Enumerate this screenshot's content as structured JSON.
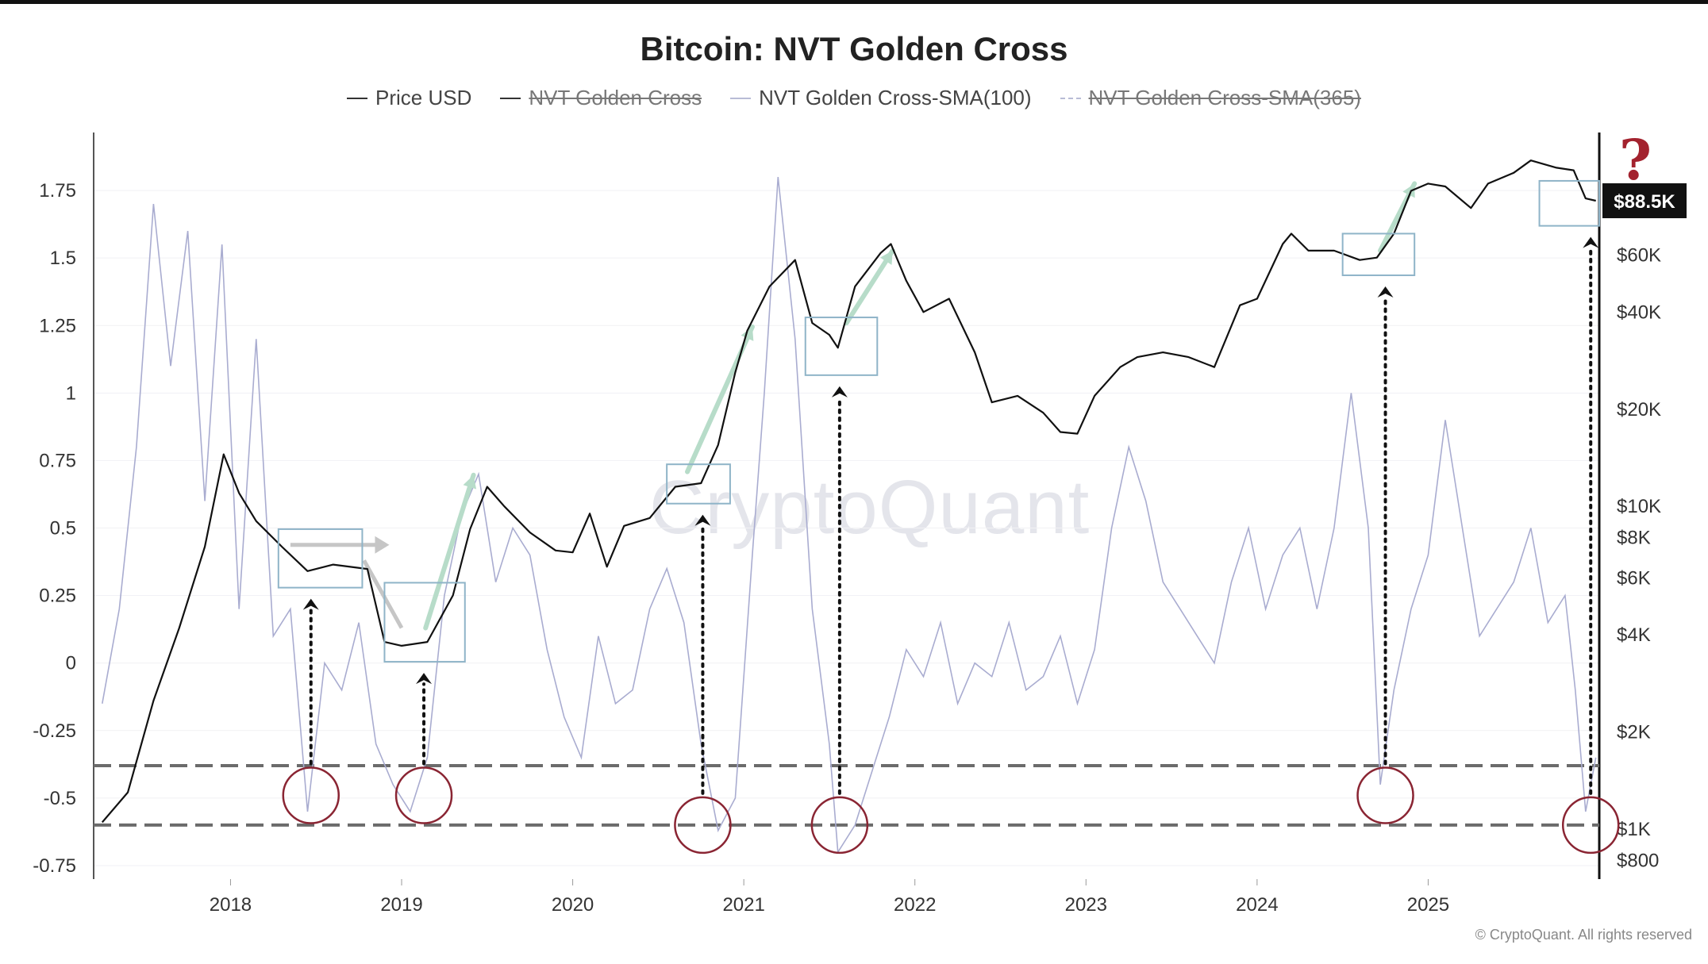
{
  "chart_data": {
    "type": "line",
    "title": "Bitcoin: NVT Golden Cross",
    "legend": [
      {
        "name": "Price USD",
        "struck": false,
        "style": "solid-dark"
      },
      {
        "name": "NVT Golden Cross",
        "struck": true,
        "style": "solid-dark"
      },
      {
        "name": "NVT Golden Cross-SMA(100)",
        "struck": false,
        "style": "solid-light"
      },
      {
        "name": "NVT Golden Cross-SMA(365)",
        "struck": true,
        "style": "dashed-light"
      }
    ],
    "x_ticks": [
      "2018",
      "2019",
      "2020",
      "2021",
      "2022",
      "2023",
      "2024",
      "2025"
    ],
    "x_range": [
      2017.2,
      2026.0
    ],
    "left_axis": {
      "ticks": [
        1.75,
        1.5,
        1.25,
        1,
        0.75,
        0.5,
        0.25,
        0,
        -0.25,
        -0.5,
        -0.75
      ],
      "tick_labels": [
        "1.75",
        "1.5",
        "1.25",
        "1",
        "0.75",
        "0.5",
        "0.25",
        "0",
        "-0.25",
        "-0.5",
        "-0.75"
      ],
      "range": [
        -0.8,
        1.95
      ]
    },
    "right_axis": {
      "scale": "log",
      "ticks": [
        800,
        1000,
        2000,
        4000,
        6000,
        8000,
        10000,
        20000,
        40000,
        60000
      ],
      "tick_labels": [
        "$800",
        "$1K",
        "$2K",
        "$4K",
        "$6K",
        "$8K",
        "$10K",
        "$20K",
        "$40K",
        "$60K"
      ],
      "range": [
        700,
        140000
      ]
    },
    "current_price_label": "$88.5K",
    "current_price": 88500,
    "threshold_lines": [
      -0.38,
      -0.6
    ],
    "series": [
      {
        "name": "Price USD",
        "axis": "right",
        "x": [
          2017.25,
          2017.4,
          2017.55,
          2017.7,
          2017.85,
          2017.96,
          2018.05,
          2018.15,
          2018.3,
          2018.45,
          2018.6,
          2018.8,
          2018.9,
          2019.0,
          2019.15,
          2019.3,
          2019.4,
          2019.5,
          2019.6,
          2019.75,
          2019.9,
          2020.0,
          2020.1,
          2020.2,
          2020.3,
          2020.45,
          2020.6,
          2020.75,
          2020.85,
          2020.95,
          2021.02,
          2021.15,
          2021.3,
          2021.4,
          2021.5,
          2021.55,
          2021.65,
          2021.8,
          2021.86,
          2021.95,
          2022.05,
          2022.2,
          2022.35,
          2022.45,
          2022.6,
          2022.75,
          2022.85,
          2022.95,
          2023.05,
          2023.2,
          2023.3,
          2023.45,
          2023.6,
          2023.75,
          2023.9,
          2024.0,
          2024.15,
          2024.2,
          2024.3,
          2024.45,
          2024.6,
          2024.7,
          2024.8,
          2024.9,
          2025.0,
          2025.1,
          2025.25,
          2025.35,
          2025.5,
          2025.6,
          2025.75,
          2025.85,
          2025.92,
          2025.98
        ],
        "values": [
          1050,
          1300,
          2500,
          4200,
          7500,
          14500,
          11000,
          9000,
          7500,
          6300,
          6600,
          6400,
          3800,
          3700,
          3800,
          5300,
          8500,
          11500,
          10000,
          8300,
          7300,
          7200,
          9500,
          6500,
          8700,
          9200,
          11500,
          11800,
          15500,
          26000,
          35000,
          48000,
          58000,
          37000,
          34000,
          31000,
          48000,
          61000,
          65000,
          50000,
          40000,
          44000,
          30000,
          21000,
          22000,
          19500,
          17000,
          16800,
          22000,
          27000,
          29000,
          30000,
          29000,
          27000,
          42000,
          44000,
          65000,
          70000,
          62000,
          62000,
          58000,
          59000,
          70000,
          95000,
          100000,
          98000,
          84000,
          100000,
          108000,
          118000,
          112000,
          110000,
          90000,
          88500
        ]
      },
      {
        "name": "NVT Golden Cross-SMA(100)",
        "axis": "left",
        "x": [
          2017.25,
          2017.35,
          2017.45,
          2017.55,
          2017.65,
          2017.75,
          2017.85,
          2017.95,
          2018.05,
          2018.15,
          2018.25,
          2018.35,
          2018.45,
          2018.55,
          2018.65,
          2018.75,
          2018.85,
          2018.95,
          2019.05,
          2019.15,
          2019.25,
          2019.35,
          2019.45,
          2019.55,
          2019.65,
          2019.75,
          2019.85,
          2019.95,
          2020.05,
          2020.15,
          2020.25,
          2020.35,
          2020.45,
          2020.55,
          2020.65,
          2020.75,
          2020.85,
          2020.95,
          2021.05,
          2021.12,
          2021.2,
          2021.3,
          2021.4,
          2021.5,
          2021.55,
          2021.65,
          2021.75,
          2021.85,
          2021.95,
          2022.05,
          2022.15,
          2022.25,
          2022.35,
          2022.45,
          2022.55,
          2022.65,
          2022.75,
          2022.85,
          2022.95,
          2023.05,
          2023.15,
          2023.25,
          2023.35,
          2023.45,
          2023.55,
          2023.65,
          2023.75,
          2023.85,
          2023.95,
          2024.05,
          2024.15,
          2024.25,
          2024.35,
          2024.45,
          2024.55,
          2024.65,
          2024.72,
          2024.8,
          2024.9,
          2025.0,
          2025.1,
          2025.2,
          2025.3,
          2025.4,
          2025.5,
          2025.6,
          2025.7,
          2025.8,
          2025.86,
          2025.92,
          2025.98
        ],
        "values": [
          -0.15,
          0.2,
          0.8,
          1.7,
          1.1,
          1.6,
          0.6,
          1.55,
          0.2,
          1.2,
          0.1,
          0.2,
          -0.55,
          0.0,
          -0.1,
          0.15,
          -0.3,
          -0.45,
          -0.55,
          -0.35,
          0.25,
          0.55,
          0.7,
          0.3,
          0.5,
          0.4,
          0.05,
          -0.2,
          -0.35,
          0.1,
          -0.15,
          -0.1,
          0.2,
          0.35,
          0.15,
          -0.3,
          -0.62,
          -0.5,
          0.4,
          1.0,
          1.8,
          1.2,
          0.2,
          -0.3,
          -0.7,
          -0.6,
          -0.4,
          -0.2,
          0.05,
          -0.05,
          0.15,
          -0.15,
          0.0,
          -0.05,
          0.15,
          -0.1,
          -0.05,
          0.1,
          -0.15,
          0.05,
          0.5,
          0.8,
          0.6,
          0.3,
          0.2,
          0.1,
          0.0,
          0.3,
          0.5,
          0.2,
          0.4,
          0.5,
          0.2,
          0.5,
          1.0,
          0.5,
          -0.45,
          -0.1,
          0.2,
          0.4,
          0.9,
          0.5,
          0.1,
          0.2,
          0.3,
          0.5,
          0.15,
          0.25,
          -0.1,
          -0.55,
          -0.35
        ]
      }
    ],
    "annotations": {
      "circles": [
        2018.47,
        2019.13,
        2020.76,
        2021.56,
        2024.75,
        2025.95
      ],
      "boxes": [
        {
          "x0": 2018.28,
          "x1": 2018.77,
          "price_low": 5600,
          "price_high": 8500
        },
        {
          "x0": 2018.9,
          "x1": 2019.37,
          "price_low": 3300,
          "price_high": 5800
        },
        {
          "x0": 2020.55,
          "x1": 2020.92,
          "price_low": 10200,
          "price_high": 13500
        },
        {
          "x0": 2021.36,
          "x1": 2021.78,
          "price_low": 25500,
          "price_high": 38500
        },
        {
          "x0": 2024.5,
          "x1": 2024.92,
          "price_low": 52000,
          "price_high": 70000
        },
        {
          "x0": 2025.65,
          "x1": 2026.0,
          "price_low": 74000,
          "price_high": 102000
        }
      ]
    }
  },
  "watermark": "CryptoQuant",
  "credits": "© CryptoQuant. All rights reserved",
  "question_mark": "?"
}
